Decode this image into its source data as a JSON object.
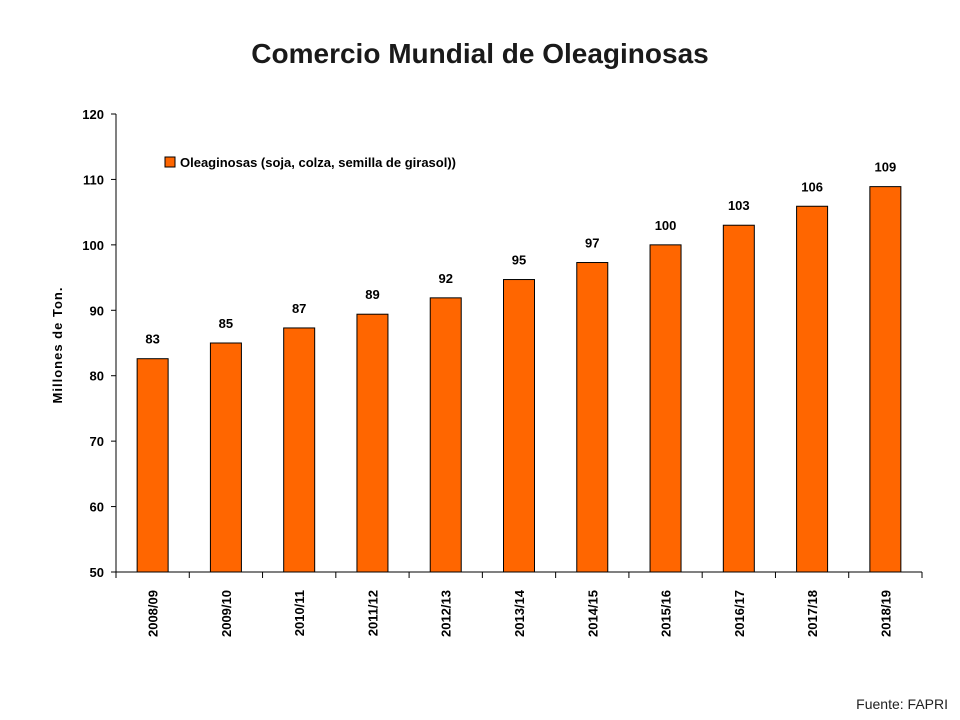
{
  "chart_data": {
    "type": "bar",
    "title": "Comercio Mundial de Oleaginosas",
    "ylabel": "Millones de Ton.",
    "xlabel": "",
    "ylim": [
      50,
      120
    ],
    "yticks": [
      50,
      60,
      70,
      80,
      90,
      100,
      110,
      120
    ],
    "categories": [
      "2008/09",
      "2009/10",
      "2010/11",
      "2011/12",
      "2012/13",
      "2013/14",
      "2014/15",
      "2015/16",
      "2016/17",
      "2017/18",
      "2018/19"
    ],
    "series": [
      {
        "name": "Oleaginosas (soja, colza, semilla de girasol))",
        "values": [
          82.6,
          85.0,
          87.3,
          89.4,
          91.9,
          94.7,
          97.3,
          100.0,
          103.0,
          105.9,
          108.9
        ],
        "labels": [
          "83",
          "85",
          "87",
          "89",
          "92",
          "95",
          "97",
          "100",
          "103",
          "106",
          "109"
        ],
        "color": "#ff6600"
      }
    ],
    "grid": false,
    "legend_position": "top-left"
  },
  "source_note": "Fuente: FAPRI"
}
